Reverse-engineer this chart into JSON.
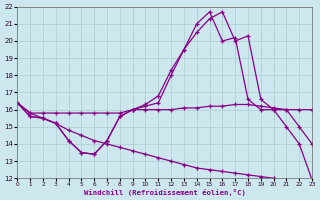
{
  "xlabel": "Windchill (Refroidissement éolien,°C)",
  "background_color": "#cce8ee",
  "line_color": "#880088",
  "grid_color": "#aacccc",
  "xlim": [
    0,
    23
  ],
  "ylim": [
    12,
    22
  ],
  "xticks": [
    0,
    1,
    2,
    3,
    4,
    5,
    6,
    7,
    8,
    9,
    10,
    11,
    12,
    13,
    14,
    15,
    16,
    17,
    18,
    19,
    20,
    21,
    22,
    23
  ],
  "yticks": [
    12,
    13,
    14,
    15,
    16,
    17,
    18,
    19,
    20,
    21,
    22
  ],
  "line_flat_x": [
    0,
    1,
    2,
    3,
    4,
    5,
    6,
    7,
    8,
    9,
    10,
    11,
    12,
    13,
    14,
    15,
    16,
    17,
    18,
    19,
    20,
    21,
    22,
    23
  ],
  "line_flat_y": [
    16.4,
    15.8,
    15.8,
    15.8,
    15.8,
    15.8,
    15.8,
    15.8,
    15.8,
    16.0,
    16.0,
    16.0,
    16.0,
    16.1,
    16.1,
    16.2,
    16.2,
    16.3,
    16.3,
    16.2,
    16.1,
    16.0,
    16.0,
    16.0
  ],
  "line_diag_x": [
    0,
    1,
    2,
    3,
    4,
    5,
    6,
    7,
    8,
    9,
    10,
    11,
    12,
    13,
    14,
    15,
    16,
    17,
    18,
    19,
    20,
    21,
    22,
    23
  ],
  "line_diag_y": [
    16.4,
    15.8,
    15.5,
    15.2,
    14.8,
    14.5,
    14.2,
    14.0,
    13.8,
    13.6,
    13.4,
    13.2,
    13.0,
    12.8,
    12.6,
    12.5,
    12.4,
    12.3,
    12.2,
    12.1,
    12.0,
    11.9,
    11.9,
    11.9
  ],
  "line_rise_x": [
    0,
    1,
    2,
    3,
    4,
    5,
    6,
    7,
    8,
    9,
    10,
    11,
    12,
    13,
    14,
    15,
    16,
    17,
    18,
    19,
    20,
    21,
    22,
    23
  ],
  "line_rise_y": [
    16.4,
    15.6,
    15.5,
    15.2,
    14.2,
    13.5,
    13.4,
    14.2,
    15.6,
    16.0,
    16.2,
    16.4,
    18.0,
    19.5,
    20.5,
    21.3,
    21.7,
    20.0,
    20.3,
    16.6,
    16.0,
    16.0,
    15.0,
    14.0
  ],
  "line_peak_x": [
    0,
    1,
    2,
    3,
    4,
    5,
    6,
    7,
    8,
    9,
    10,
    11,
    12,
    13,
    14,
    15,
    16,
    17,
    18,
    19,
    20,
    21,
    22,
    23
  ],
  "line_peak_y": [
    16.4,
    15.6,
    15.5,
    15.2,
    14.2,
    13.5,
    13.4,
    14.2,
    15.6,
    16.0,
    16.3,
    16.8,
    18.3,
    19.5,
    21.0,
    21.7,
    20.0,
    20.2,
    16.6,
    16.0,
    16.0,
    15.0,
    14.0,
    11.9
  ],
  "marker_size": 3.5,
  "linewidth": 0.9
}
